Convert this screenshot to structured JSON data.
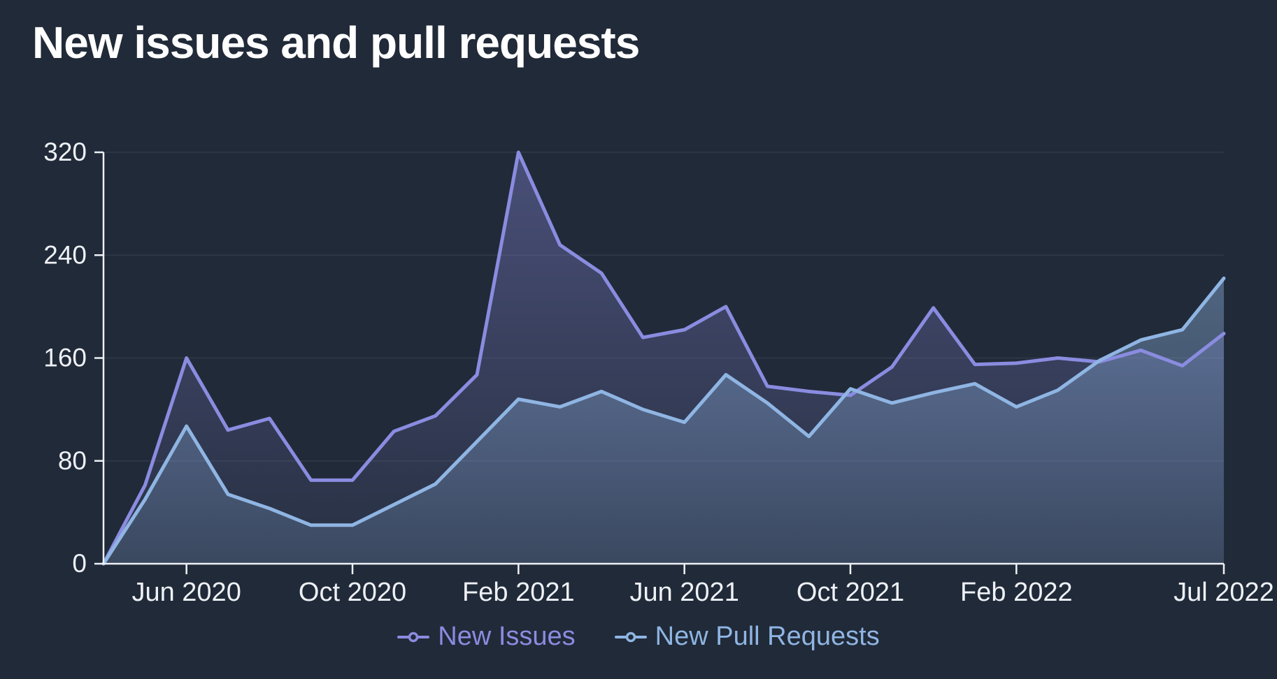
{
  "title": "New issues and pull requests",
  "legend": {
    "items": [
      {
        "label": "New Issues",
        "color": "#8a8ce0"
      },
      {
        "label": "New Pull Requests",
        "color": "#8fb5e3"
      }
    ]
  },
  "chart_data": {
    "type": "area",
    "title": "New issues and pull requests",
    "x": [
      "Apr 2020",
      "May 2020",
      "Jun 2020",
      "Jul 2020",
      "Aug 2020",
      "Sep 2020",
      "Oct 2020",
      "Nov 2020",
      "Dec 2020",
      "Jan 2021",
      "Feb 2021",
      "Mar 2021",
      "Apr 2021",
      "May 2021",
      "Jun 2021",
      "Jul 2021",
      "Aug 2021",
      "Sep 2021",
      "Oct 2021",
      "Nov 2021",
      "Dec 2021",
      "Jan 2022",
      "Feb 2022",
      "Mar 2022",
      "Apr 2022",
      "May 2022",
      "Jun 2022",
      "Jul 2022"
    ],
    "series": [
      {
        "name": "New Issues",
        "color": "#8a8ce0",
        "values": [
          0,
          61,
          160,
          104,
          113,
          65,
          65,
          103,
          115,
          147,
          320,
          248,
          226,
          176,
          182,
          200,
          138,
          134,
          131,
          153,
          199,
          155,
          156,
          160,
          157,
          166,
          154,
          179
        ]
      },
      {
        "name": "New Pull Requests",
        "color": "#8fb5e3",
        "values": [
          0,
          50,
          107,
          54,
          43,
          30,
          30,
          46,
          62,
          95,
          128,
          122,
          134,
          120,
          110,
          147,
          125,
          99,
          136,
          125,
          133,
          140,
          122,
          135,
          158,
          174,
          182,
          222
        ]
      }
    ],
    "ylim": [
      0,
      320
    ],
    "yticks": [
      0,
      80,
      160,
      240,
      320
    ],
    "x_tick_indices": [
      2,
      6,
      10,
      14,
      18,
      22,
      27
    ],
    "x_tick_labels": [
      "Jun 2020",
      "Oct 2020",
      "Feb 2021",
      "Jun 2021",
      "Oct 2021",
      "Feb 2022",
      "Jul 2022"
    ],
    "grid": true,
    "legend_position": "bottom",
    "background": "#212a38",
    "axis_color": "#eef1f6",
    "grid_color": "rgba(235,240,255,0.08)"
  }
}
